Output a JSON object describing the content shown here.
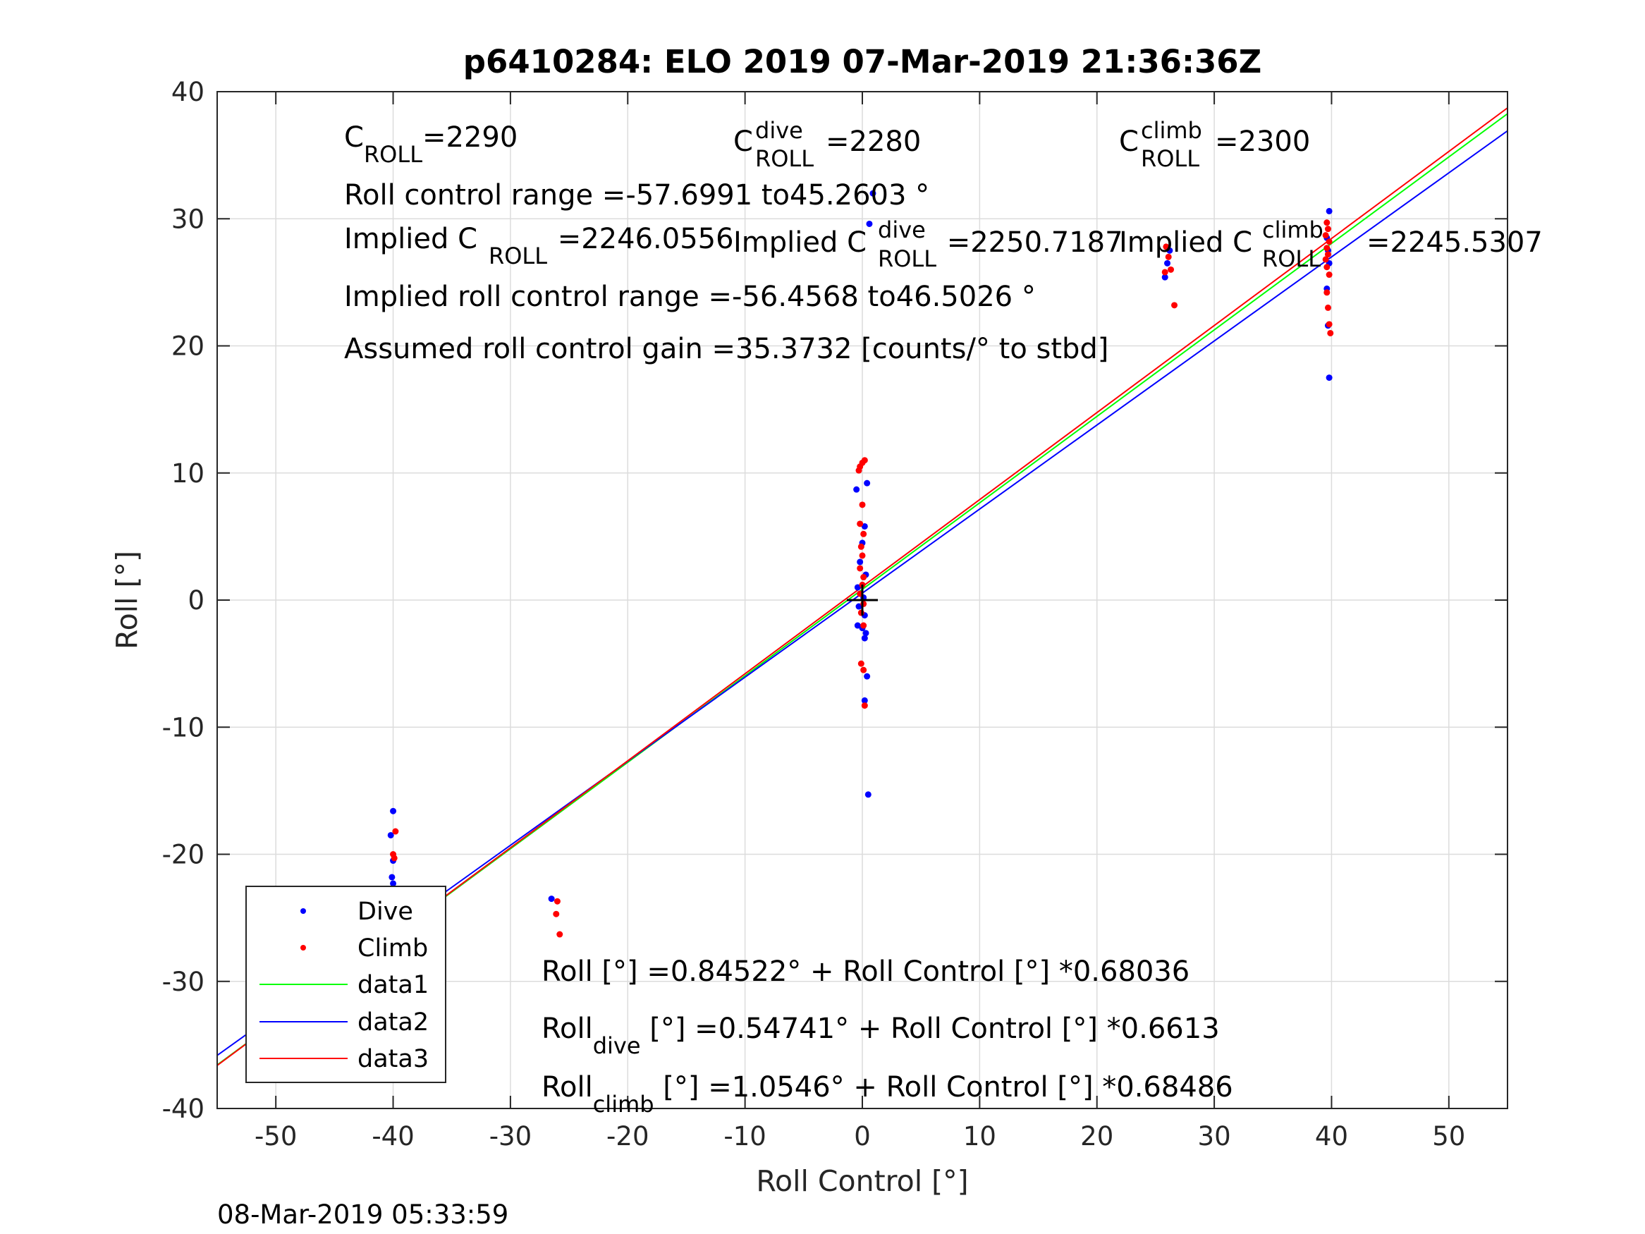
{
  "chart_data": {
    "type": "scatter",
    "title": "p6410284: ELO 2019 07-Mar-2019 21:36:36Z",
    "xlabel": "Roll Control [°]",
    "ylabel": "Roll [°]",
    "xlim": [
      -55,
      55
    ],
    "ylim": [
      -40,
      40
    ],
    "xticks": [
      -50,
      -40,
      -30,
      -20,
      -10,
      0,
      10,
      20,
      30,
      40,
      50
    ],
    "yticks": [
      -40,
      -30,
      -20,
      -10,
      0,
      10,
      20,
      30,
      40
    ],
    "xtick_labels": [
      "-50",
      "-40",
      "-30",
      "-20",
      "-10",
      "0",
      "10",
      "20",
      "30",
      "40",
      "50"
    ],
    "ytick_labels": [
      "-40",
      "-30",
      "-20",
      "-10",
      "0",
      "10",
      "20",
      "30",
      "40"
    ],
    "grid": true,
    "legend_position": "bottom-left",
    "series": [
      {
        "name": "Dive",
        "kind": "points",
        "color": "#0000ff",
        "points": [
          [
            -40,
            -16.6
          ],
          [
            -40.2,
            -18.5
          ],
          [
            -40,
            -20.5
          ],
          [
            -40.1,
            -21.8
          ],
          [
            -40,
            -22.3
          ],
          [
            -40.2,
            -23.5
          ],
          [
            -40,
            -24.5
          ],
          [
            -40.1,
            -25.2
          ],
          [
            -40,
            -25.8
          ],
          [
            -40.2,
            -26.4
          ],
          [
            -40,
            -27
          ],
          [
            -40.1,
            -27.6
          ],
          [
            -40,
            -28.2
          ],
          [
            -40.2,
            -28.8
          ],
          [
            -40,
            -29.4
          ],
          [
            -40.1,
            -29.9
          ],
          [
            -26.5,
            -23.5
          ],
          [
            -0.5,
            8.7
          ],
          [
            0.4,
            9.2
          ],
          [
            0.2,
            5.8
          ],
          [
            0,
            4.5
          ],
          [
            -0.2,
            3
          ],
          [
            0.3,
            2
          ],
          [
            -0.4,
            1
          ],
          [
            0.1,
            0.2
          ],
          [
            -0.3,
            -0.5
          ],
          [
            0.2,
            -1.2
          ],
          [
            -0.4,
            -2
          ],
          [
            0,
            -2.2
          ],
          [
            0.3,
            -2.6
          ],
          [
            0.2,
            -3
          ],
          [
            0.4,
            -6
          ],
          [
            0.2,
            -7.9
          ],
          [
            0.5,
            -15.3
          ],
          [
            0.6,
            29.6
          ],
          [
            0.9,
            32
          ],
          [
            25.8,
            25.4
          ],
          [
            26,
            26.5
          ],
          [
            26.2,
            27.5
          ],
          [
            39.8,
            30.6
          ],
          [
            39.6,
            28.5
          ],
          [
            39.7,
            27.5
          ],
          [
            39.8,
            26.5
          ],
          [
            39.6,
            24.5
          ],
          [
            39.7,
            21.6
          ],
          [
            39.8,
            17.5
          ]
        ]
      },
      {
        "name": "Climb",
        "kind": "points",
        "color": "#ff0000",
        "points": [
          [
            -39.8,
            -18.2
          ],
          [
            -40,
            -20
          ],
          [
            -39.9,
            -20.3
          ],
          [
            -40.1,
            -23.8
          ],
          [
            -39.8,
            -24.3
          ],
          [
            -40,
            -25
          ],
          [
            -39.9,
            -25.5
          ],
          [
            -40.1,
            -26.2
          ],
          [
            -39.8,
            -26.7
          ],
          [
            -40,
            -27.3
          ],
          [
            -39.9,
            -27.9
          ],
          [
            -40.1,
            -28.5
          ],
          [
            -26,
            -23.7
          ],
          [
            -26.1,
            -24.7
          ],
          [
            -25.8,
            -26.3
          ],
          [
            -0.2,
            10.5
          ],
          [
            0,
            10.8
          ],
          [
            0.2,
            11
          ],
          [
            -0.3,
            10.2
          ],
          [
            0,
            7.5
          ],
          [
            -0.2,
            6
          ],
          [
            0.1,
            5.2
          ],
          [
            -0.1,
            4.2
          ],
          [
            0,
            3.5
          ],
          [
            -0.2,
            2.5
          ],
          [
            0.1,
            1.8
          ],
          [
            0,
            1.2
          ],
          [
            -0.2,
            0.5
          ],
          [
            0.1,
            -0.3
          ],
          [
            -0.1,
            -1
          ],
          [
            0.1,
            -2
          ],
          [
            -0.1,
            -5
          ],
          [
            0.1,
            -5.5
          ],
          [
            0.2,
            -8.3
          ],
          [
            25.9,
            27.8
          ],
          [
            26.1,
            27
          ],
          [
            26.3,
            26
          ],
          [
            25.8,
            25.8
          ],
          [
            26.6,
            23.2
          ],
          [
            39.6,
            29.7
          ],
          [
            39.7,
            29.2
          ],
          [
            39.5,
            28.7
          ],
          [
            39.8,
            28.2
          ],
          [
            39.6,
            27.7
          ],
          [
            39.7,
            27.2
          ],
          [
            39.5,
            26.8
          ],
          [
            39.6,
            26.2
          ],
          [
            39.8,
            25.6
          ],
          [
            39.6,
            24.2
          ],
          [
            39.7,
            23
          ],
          [
            39.8,
            21.7
          ],
          [
            39.9,
            21
          ]
        ]
      },
      {
        "name": "data1",
        "kind": "line",
        "color": "#00ff00",
        "intercept": 0.84522,
        "slope": 0.68036
      },
      {
        "name": "data2",
        "kind": "line",
        "color": "#0000ff",
        "intercept": 0.54741,
        "slope": 0.6613
      },
      {
        "name": "data3",
        "kind": "line",
        "color": "#ff0000",
        "intercept": 1.0546,
        "slope": 0.68486
      }
    ],
    "marker": {
      "x": 0,
      "y": 0,
      "symbol": "+"
    },
    "annotations": {
      "c_roll": {
        "base": "C",
        "sub": "ROLL",
        "rest": "=2290"
      },
      "c_roll_dive": {
        "base": "C",
        "sup": "dive",
        "sub": "ROLL",
        "rest": "=2280"
      },
      "c_roll_climb": {
        "base": "C",
        "sup": "climb",
        "sub": "ROLL",
        "rest": "=2300"
      },
      "range": "Roll control range =-57.6991 to45.2603 °",
      "implied_c_prefix": "Implied C",
      "implied_c_sub": "ROLL",
      "implied_c_value": " =2246.0556",
      "implied_dive_prefix": "Implied C",
      "implied_dive_sup": "dive",
      "implied_dive_sub": "ROLL",
      "implied_dive_value": " =2250.7187",
      "implied_climb_prefix": "Implied C",
      "implied_climb_sup": "climb",
      "implied_climb_sub": "ROLL",
      "implied_climb_value": "=2245.5307",
      "implied_range": "Implied roll control range =-56.4568 to46.5026 °",
      "gain": "Assumed roll control gain =35.3732 [counts/° to stbd]",
      "fit_all": "Roll [°] =0.84522° + Roll Control [°] *0.68036",
      "fit_dive_base": "Roll",
      "fit_dive_sub": "dive",
      "fit_dive_rest": " [°] =0.54741° + Roll Control [°] *0.6613",
      "fit_climb_base": "Roll",
      "fit_climb_sub": "climb",
      "fit_climb_rest": " [°] =1.0546° + Roll Control [°] *0.68486"
    },
    "footer": "08-Mar-2019 05:33:59"
  }
}
